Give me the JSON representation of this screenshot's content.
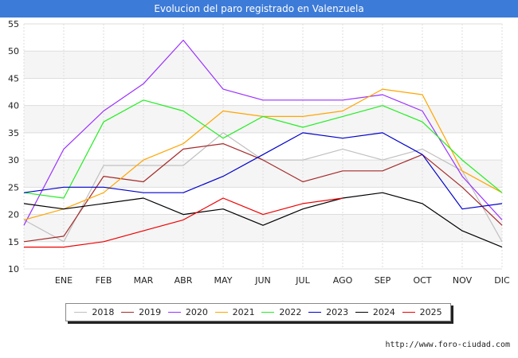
{
  "header": {
    "title": "Evolucion del paro registrado en Valenzuela"
  },
  "source": {
    "text": "http://www.foro-ciudad.com"
  },
  "chart_data": {
    "type": "line",
    "title": "Evolucion del paro registrado en Valenzuela",
    "categories": [
      "",
      "ENE",
      "FEB",
      "MAR",
      "ABR",
      "MAY",
      "JUN",
      "JUL",
      "AGO",
      "SEP",
      "OCT",
      "NOV",
      "DIC"
    ],
    "ylim": [
      10,
      55
    ],
    "yticks": [
      10,
      15,
      20,
      25,
      30,
      35,
      40,
      45,
      50,
      55
    ],
    "grid": true,
    "legend_position": "bottom",
    "series": [
      {
        "name": "2018",
        "color": "#c0c0c0",
        "values": [
          19,
          15,
          29,
          29,
          29,
          35,
          30,
          30,
          32,
          30,
          32,
          28,
          15
        ]
      },
      {
        "name": "2019",
        "color": "#a52a2a",
        "values": [
          15,
          16,
          27,
          26,
          32,
          33,
          30,
          26,
          28,
          28,
          31,
          25,
          18
        ]
      },
      {
        "name": "2020",
        "color": "#9b30ff",
        "values": [
          18,
          32,
          39,
          44,
          52,
          43,
          41,
          41,
          41,
          42,
          39,
          27,
          19
        ]
      },
      {
        "name": "2021",
        "color": "#ffa500",
        "values": [
          19,
          21,
          24,
          30,
          33,
          39,
          38,
          38,
          39,
          43,
          42,
          28,
          24
        ]
      },
      {
        "name": "2022",
        "color": "#22ee22",
        "values": [
          24,
          23,
          37,
          41,
          39,
          34,
          38,
          36,
          38,
          40,
          37,
          30,
          24
        ]
      },
      {
        "name": "2023",
        "color": "#0000cc",
        "values": [
          24,
          25,
          25,
          24,
          24,
          27,
          31,
          35,
          34,
          35,
          31,
          21,
          22
        ]
      },
      {
        "name": "2024",
        "color": "#000000",
        "values": [
          22,
          21,
          22,
          23,
          20,
          21,
          18,
          21,
          23,
          24,
          22,
          17,
          14
        ]
      },
      {
        "name": "2025",
        "color": "#ee0000",
        "values": [
          14,
          14,
          15,
          17,
          19,
          23,
          20,
          22,
          23,
          null,
          null,
          null,
          null
        ]
      }
    ]
  }
}
